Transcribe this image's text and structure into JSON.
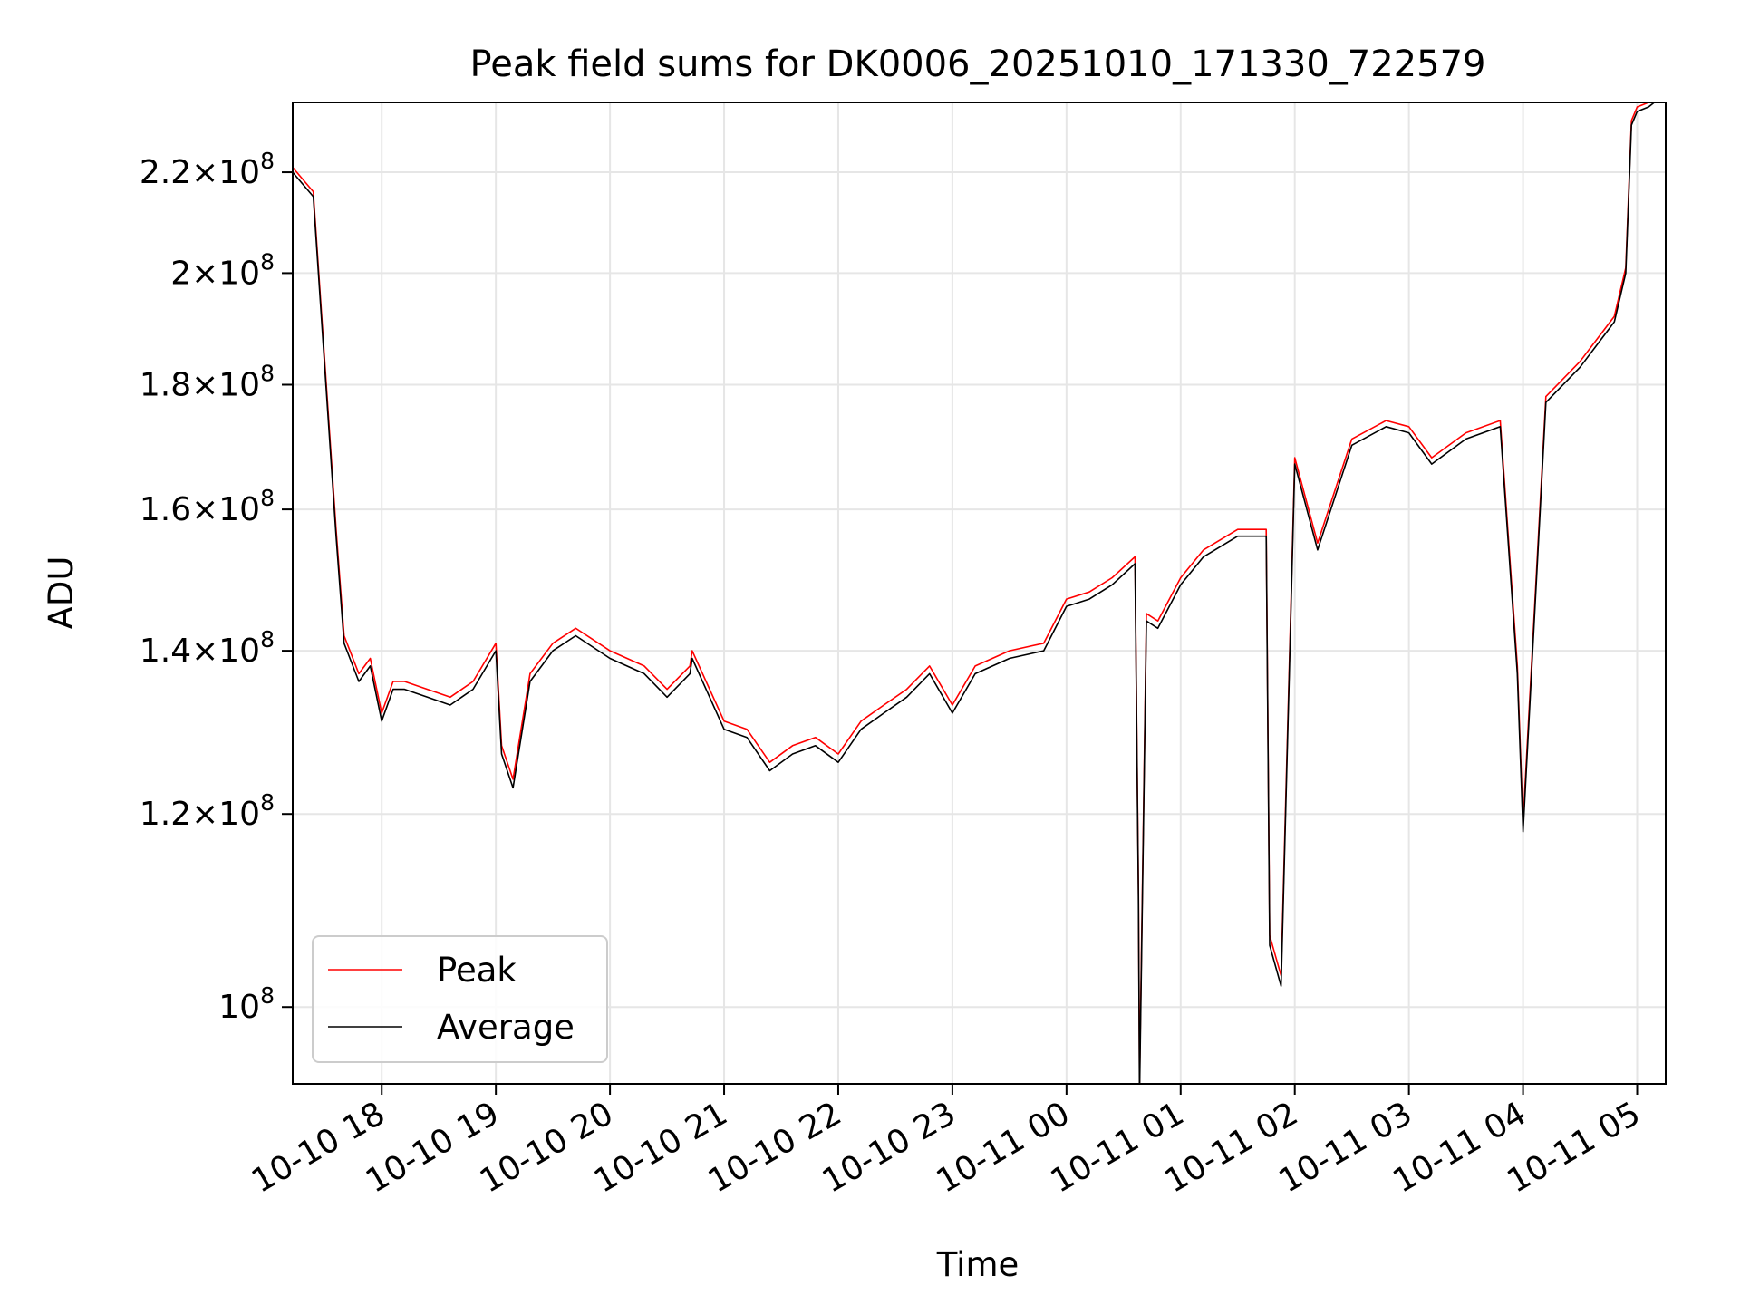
{
  "chart_data": {
    "type": "line",
    "title": "Peak field sums for DK0006_20251010_171330_722579",
    "xlabel": "Time",
    "ylabel": "ADU",
    "yscale": "log",
    "ylim": [
      93000000,
      235000000
    ],
    "xlim_hours": [
      17.22,
      29.25
    ],
    "grid": true,
    "legend_position": "lower-left",
    "x_ticks": [
      {
        "label": "10-10 18",
        "hour": 18
      },
      {
        "label": "10-10 19",
        "hour": 19
      },
      {
        "label": "10-10 20",
        "hour": 20
      },
      {
        "label": "10-10 21",
        "hour": 21
      },
      {
        "label": "10-10 22",
        "hour": 22
      },
      {
        "label": "10-10 23",
        "hour": 23
      },
      {
        "label": "10-11 00",
        "hour": 24
      },
      {
        "label": "10-11 01",
        "hour": 25
      },
      {
        "label": "10-11 02",
        "hour": 26
      },
      {
        "label": "10-11 03",
        "hour": 27
      },
      {
        "label": "10-11 04",
        "hour": 28
      },
      {
        "label": "10-11 05",
        "hour": 29
      }
    ],
    "y_ticks": [
      {
        "value": 100000000,
        "mant": "",
        "exp": "8"
      },
      {
        "value": 120000000,
        "mant": "1.2",
        "exp": "8"
      },
      {
        "value": 140000000,
        "mant": "1.4",
        "exp": "8"
      },
      {
        "value": 160000000,
        "mant": "1.6",
        "exp": "8"
      },
      {
        "value": 180000000,
        "mant": "1.8",
        "exp": "8"
      },
      {
        "value": 200000000,
        "mant": "2",
        "exp": "8"
      },
      {
        "value": 220000000,
        "mant": "2.2",
        "exp": "8"
      }
    ],
    "x_hours": [
      17.22,
      17.4,
      17.6,
      17.67,
      17.8,
      17.9,
      18.0,
      18.1,
      18.2,
      18.4,
      18.6,
      18.8,
      19.0,
      19.05,
      19.15,
      19.3,
      19.5,
      19.7,
      20.0,
      20.3,
      20.5,
      20.7,
      20.72,
      21.0,
      21.2,
      21.4,
      21.6,
      21.8,
      22.0,
      22.2,
      22.4,
      22.6,
      22.8,
      23.0,
      23.2,
      23.5,
      23.8,
      24.0,
      24.2,
      24.4,
      24.6,
      24.63,
      24.64,
      24.7,
      24.8,
      25.0,
      25.2,
      25.5,
      25.75,
      25.78,
      25.88,
      26.0,
      26.2,
      26.5,
      26.8,
      27.0,
      27.2,
      27.5,
      27.8,
      27.95,
      28.0,
      28.2,
      28.5,
      28.8,
      28.9,
      28.95,
      29.0,
      29.1,
      29.15
    ],
    "series": [
      {
        "name": "Peak",
        "color": "#ff0000",
        "values": [
          221000000,
          216000000,
          157000000,
          142000000,
          137000000,
          139000000,
          132000000,
          136000000,
          136000000,
          135000000,
          134000000,
          136000000,
          141000000,
          128000000,
          124000000,
          137000000,
          141000000,
          143000000,
          140000000,
          138000000,
          135000000,
          138000000,
          140000000,
          131000000,
          130000000,
          126000000,
          128000000,
          129000000,
          127000000,
          131000000,
          133000000,
          135000000,
          138000000,
          133000000,
          138000000,
          140000000,
          141000000,
          147000000,
          148000000,
          150000000,
          153000000,
          112000000,
          93000000,
          145000000,
          144000000,
          150000000,
          154000000,
          157000000,
          157000000,
          107000000,
          103000000,
          168000000,
          155000000,
          171000000,
          174000000,
          173000000,
          168000000,
          172000000,
          174000000,
          138000000,
          119000000,
          178000000,
          184000000,
          192000000,
          201000000,
          231000000,
          234000000,
          235000000,
          236000000
        ]
      },
      {
        "name": "Average",
        "color": "#000000",
        "values": [
          220000000,
          215000000,
          156000000,
          141000000,
          136000000,
          138000000,
          131000000,
          135000000,
          135000000,
          134000000,
          133000000,
          135000000,
          140000000,
          127000000,
          123000000,
          136000000,
          140000000,
          142000000,
          139000000,
          137000000,
          134000000,
          137000000,
          139000000,
          130000000,
          129000000,
          125000000,
          127000000,
          128000000,
          126000000,
          130000000,
          132000000,
          134000000,
          137000000,
          132000000,
          137000000,
          139000000,
          140000000,
          146000000,
          147000000,
          149000000,
          152000000,
          111000000,
          92000000,
          144000000,
          143000000,
          149000000,
          153000000,
          156000000,
          156000000,
          106000000,
          102000000,
          167000000,
          154000000,
          170000000,
          173000000,
          172000000,
          167000000,
          171000000,
          173000000,
          137000000,
          118000000,
          177000000,
          183000000,
          191000000,
          200000000,
          230000000,
          233000000,
          234000000,
          235000000
        ]
      }
    ]
  }
}
